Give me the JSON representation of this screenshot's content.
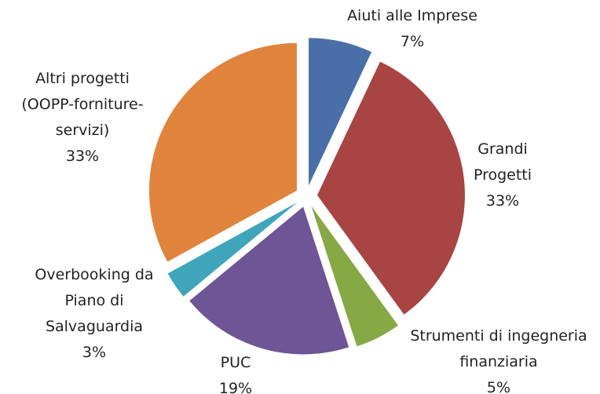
{
  "chart_data": {
    "type": "pie",
    "categories": [
      "Aiuti alle Imprese",
      "Grandi Progetti",
      "Strumenti di ingegneria finanziaria",
      "PUC",
      "Overbooking da Piano di Salvaguardia",
      "Altri progetti (OOPP-forniture-servizi)"
    ],
    "values": [
      7,
      33,
      5,
      19,
      3,
      33
    ],
    "value_labels": [
      "7%",
      "33%",
      "5%",
      "19%",
      "3%",
      "33%"
    ],
    "colors": [
      "#4a6fa8",
      "#a84442",
      "#86a845",
      "#6e5596",
      "#3ea5ba",
      "#e0843d"
    ]
  }
}
